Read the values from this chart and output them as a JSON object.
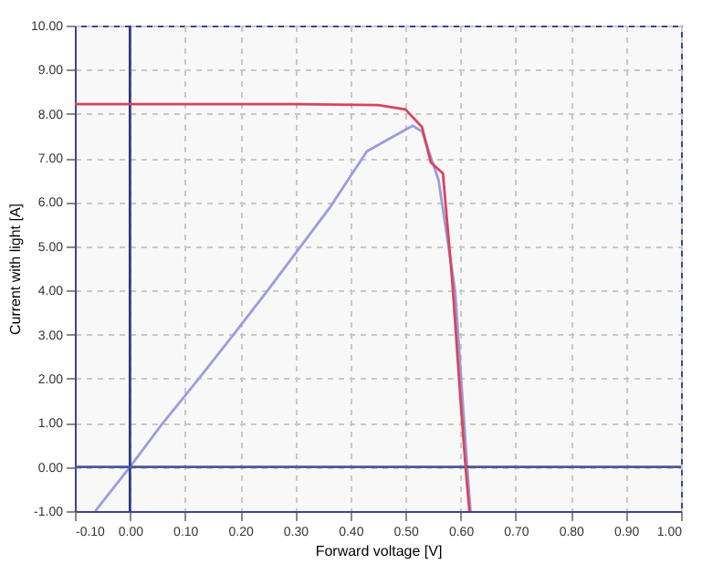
{
  "chart_data": {
    "type": "line",
    "xlabel": "Forward voltage [V]",
    "ylabel": "Current with light [A]",
    "xlim": [
      -0.1,
      1.0
    ],
    "ylim": [
      -1.0,
      10.0
    ],
    "xticks": [
      {
        "value": -0.1,
        "label": "-0.10"
      },
      {
        "value": 0,
        "label": "0.00"
      },
      {
        "value": 0.1,
        "label": "0.10"
      },
      {
        "value": 0.2,
        "label": "0.20"
      },
      {
        "value": 0.3,
        "label": "0.30"
      },
      {
        "value": 0.4,
        "label": "0.40"
      },
      {
        "value": 0.5,
        "label": "0.50"
      },
      {
        "value": 0.6,
        "label": "0.60"
      },
      {
        "value": 0.7,
        "label": "0.70"
      },
      {
        "value": 0.8,
        "label": "0.80"
      },
      {
        "value": 0.9,
        "label": "0.90"
      },
      {
        "value": 1.0,
        "label": "1.00"
      }
    ],
    "yticks": [
      {
        "value": -1,
        "label": "-1.00"
      },
      {
        "value": 0,
        "label": "0.00"
      },
      {
        "value": 1,
        "label": "1.00"
      },
      {
        "value": 2,
        "label": "2.00"
      },
      {
        "value": 3,
        "label": "3.00"
      },
      {
        "value": 4,
        "label": "4.00"
      },
      {
        "value": 5,
        "label": "5.00"
      },
      {
        "value": 6,
        "label": "6.00"
      },
      {
        "value": 7,
        "label": "7.00"
      },
      {
        "value": 8,
        "label": "8.00"
      },
      {
        "value": 9,
        "label": "9.00"
      },
      {
        "value": 10,
        "label": "10.00"
      }
    ],
    "grid": true,
    "marker": "none",
    "series": [
      {
        "color": "#9b9be0",
        "x": [
          -0.063,
          0,
          0.06,
          0.125,
          0.188,
          0.25,
          0.31,
          0.364,
          0.43,
          0.513,
          0.53,
          0.56,
          0.59,
          0.612,
          0.618
        ],
        "values": [
          -1,
          0,
          1,
          2,
          3,
          4,
          5,
          5.9,
          7.15,
          7.73,
          7.6,
          6.5,
          4.0,
          0,
          -1
        ]
      },
      {
        "color": "#d9445a",
        "x": [
          -0.1,
          0.3,
          0.45,
          0.5,
          0.53,
          0.546,
          0.568,
          0.585,
          0.6,
          0.609,
          0.616
        ],
        "values": [
          8.22,
          8.22,
          8.2,
          8.1,
          7.7,
          6.9,
          6.65,
          4.2,
          1.5,
          0,
          -1
        ]
      }
    ],
    "ref_lines": [
      {
        "axis": "x",
        "value": 0,
        "color": "#2e3a80"
      },
      {
        "axis": "y",
        "value": 0,
        "color": "#4a55a0"
      }
    ]
  }
}
